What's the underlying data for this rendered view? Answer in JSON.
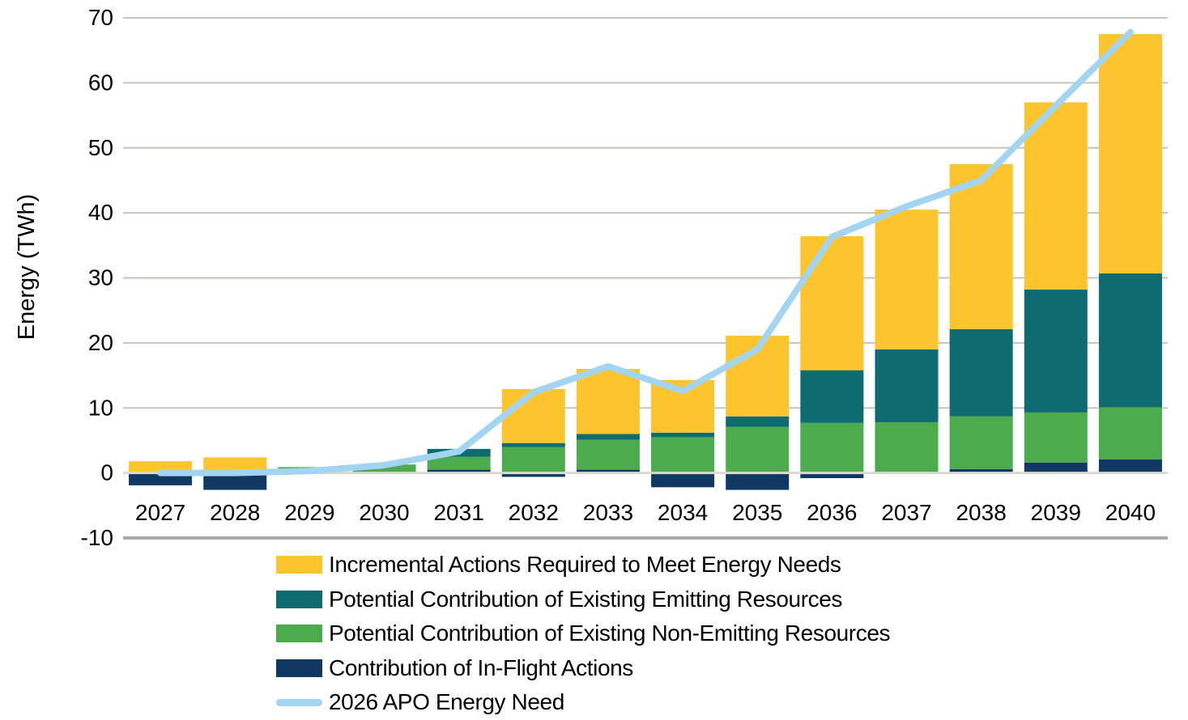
{
  "chart_data": {
    "type": "combo-stacked-bar-line",
    "title": "",
    "ylabel": "Energy (TWh)",
    "xlabel": "",
    "ylim": [
      -10,
      70
    ],
    "ytick_step": 10,
    "yticks": [
      70,
      60,
      50,
      40,
      30,
      20,
      10,
      0,
      -10
    ],
    "grid": true,
    "legend_position": "bottom-left",
    "categories": [
      "2027",
      "2028",
      "2029",
      "2030",
      "2031",
      "2032",
      "2033",
      "2034",
      "2035",
      "2036",
      "2037",
      "2038",
      "2039",
      "2040"
    ],
    "series": [
      {
        "name": "Incremental Actions Required to Meet Energy Needs",
        "type": "bar",
        "color": "#FCC52E",
        "values": [
          1.8,
          2.4,
          0,
          0,
          0,
          8.3,
          10.0,
          8.1,
          12.4,
          20.6,
          21.5,
          25.4,
          28.8,
          36.8
        ]
      },
      {
        "name": "Potential Contribution of Existing Emitting Resources",
        "type": "bar",
        "color": "#0E6B70",
        "values": [
          0,
          0,
          0,
          0,
          1.2,
          0.6,
          0.9,
          0.7,
          1.6,
          8.1,
          11.2,
          13.4,
          18.9,
          20.6
        ]
      },
      {
        "name": "Potential Contribution of Existing Non-Emitting Resources",
        "type": "bar",
        "color": "#4BAB4D",
        "values": [
          0,
          0,
          0.9,
          1.3,
          2.0,
          4.0,
          4.6,
          5.5,
          7.1,
          7.7,
          7.8,
          8.1,
          7.7,
          8.0
        ]
      },
      {
        "name": "Contribution of In-Flight Actions",
        "type": "bar",
        "color": "#113763",
        "values": [
          -1.9,
          -2.6,
          0,
          0,
          0.5,
          -0.6,
          0.5,
          -2.2,
          -2.6,
          -0.8,
          0,
          0.6,
          1.6,
          2.1
        ]
      },
      {
        "name": "2026 APO Energy Need",
        "type": "line",
        "color": "#A3D5F2",
        "values": [
          0,
          0,
          0.3,
          1.2,
          3.3,
          12.4,
          16.4,
          12.6,
          19.0,
          36.3,
          41.0,
          45.0,
          56.5,
          67.8
        ]
      }
    ],
    "stack_note": "bars stacked from axis upward in order: in-flight, non-emitting, emitting, incremental; negative in-flight values extend below zero",
    "colors": {
      "gridline": "#C6C3BC",
      "zero_line": "#DAD8D2",
      "bottom_line": "#ACA9A2",
      "text": "#000000"
    }
  }
}
